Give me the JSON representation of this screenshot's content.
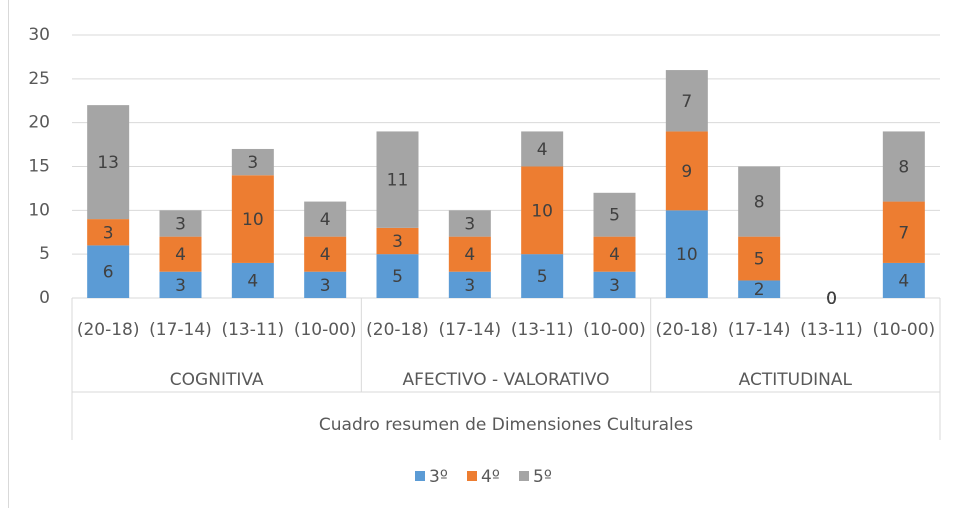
{
  "chart_data": {
    "type": "bar",
    "stacked": true,
    "groups": [
      {
        "name": "COGNITIVA",
        "categories": [
          "(20-18)",
          "(17-14)",
          "(13-11)",
          "(10-00)"
        ]
      },
      {
        "name": "AFECTIVO -  VALORATIVO",
        "categories": [
          "(20-18)",
          "(17-14)",
          "(13-11)",
          "(10-00)"
        ]
      },
      {
        "name": "ACTITUDINAL",
        "categories": [
          "(20-18)",
          "(17-14)",
          "(13-11)",
          "(10-00)"
        ]
      }
    ],
    "xlabel": "Cuadro resumen de Dimensiones Culturales",
    "series": [
      {
        "name": "3º",
        "color": "#5b9bd5",
        "values": [
          6,
          3,
          4,
          3,
          5,
          3,
          5,
          3,
          10,
          2,
          0,
          4
        ]
      },
      {
        "name": "4º",
        "color": "#ed7d31",
        "values": [
          3,
          4,
          10,
          4,
          3,
          4,
          10,
          4,
          9,
          5,
          0,
          7
        ]
      },
      {
        "name": "5º",
        "color": "#a5a5a5",
        "values": [
          13,
          3,
          3,
          4,
          11,
          3,
          4,
          5,
          7,
          8,
          0,
          8
        ]
      }
    ],
    "ylim": [
      0,
      30
    ],
    "yticks": [
      0,
      5,
      10,
      15,
      20,
      25,
      30
    ],
    "grid": true,
    "legend": "bottom"
  }
}
